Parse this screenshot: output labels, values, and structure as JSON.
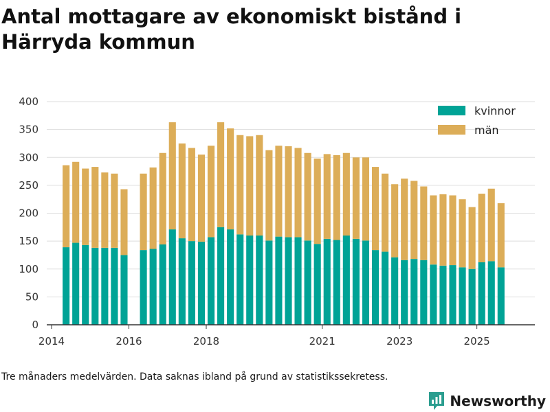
{
  "header": {
    "title": "Antal mottagare av ekonomiskt bistånd i Härryda kommun"
  },
  "footer": {
    "note": "Tre månaders medelvärden. Data saknas ibland på grund av statistikssekretess."
  },
  "brand": {
    "name": "Newsworthy",
    "color": "#2a9d8f"
  },
  "chart_data": {
    "type": "bar",
    "stacked": true,
    "title": "Antal mottagare av ekonomiskt bistånd i Härryda kommun",
    "xlabel": "",
    "ylabel": "",
    "ylim": [
      0,
      400
    ],
    "yticks": [
      0,
      50,
      100,
      150,
      200,
      250,
      300,
      350,
      400
    ],
    "xlim": [
      2013.875,
      2026.5
    ],
    "xticks": [
      {
        "label": "2014",
        "value": 2014.0
      },
      {
        "label": "2016",
        "value": 2016.0
      },
      {
        "label": "2018",
        "value": 2018.0
      },
      {
        "label": "2021",
        "value": 2021.0
      },
      {
        "label": "2023",
        "value": 2023.0
      },
      {
        "label": "2025",
        "value": 2025.0
      }
    ],
    "grid": true,
    "legend_position": "top-right",
    "x": [
      2014.375,
      2014.625,
      2014.875,
      2015.125,
      2015.375,
      2015.625,
      2015.875,
      2016.375,
      2016.625,
      2016.875,
      2017.125,
      2017.375,
      2017.625,
      2017.875,
      2018.125,
      2018.375,
      2018.625,
      2018.875,
      2019.125,
      2019.375,
      2019.625,
      2019.875,
      2020.125,
      2020.375,
      2020.625,
      2020.875,
      2021.125,
      2021.375,
      2021.625,
      2021.875,
      2022.125,
      2022.375,
      2022.625,
      2022.875,
      2023.125,
      2023.375,
      2023.625,
      2023.875,
      2024.125,
      2024.375,
      2024.625,
      2024.875,
      2025.125,
      2025.375,
      2025.625,
      2025.875
    ],
    "series": [
      {
        "name": "kvinnor",
        "color": "#00a396",
        "values": [
          139,
          147,
          143,
          138,
          138,
          138,
          125,
          134,
          136,
          144,
          171,
          155,
          150,
          149,
          157,
          175,
          171,
          162,
          160,
          160,
          151,
          158,
          157,
          157,
          151,
          145,
          154,
          152,
          160,
          154,
          151,
          134,
          131,
          121,
          116,
          118,
          116,
          108,
          106,
          107,
          103,
          100,
          112,
          114,
          103,
          0
        ]
      },
      {
        "name": "män",
        "color": "#dcad58",
        "values": [
          147,
          145,
          137,
          145,
          135,
          133,
          118,
          137,
          146,
          164,
          192,
          170,
          167,
          156,
          164,
          188,
          181,
          178,
          178,
          180,
          162,
          163,
          163,
          160,
          157,
          153,
          152,
          152,
          148,
          146,
          149,
          149,
          140,
          131,
          146,
          140,
          132,
          124,
          128,
          125,
          122,
          111,
          123,
          130,
          115,
          0
        ]
      }
    ]
  }
}
